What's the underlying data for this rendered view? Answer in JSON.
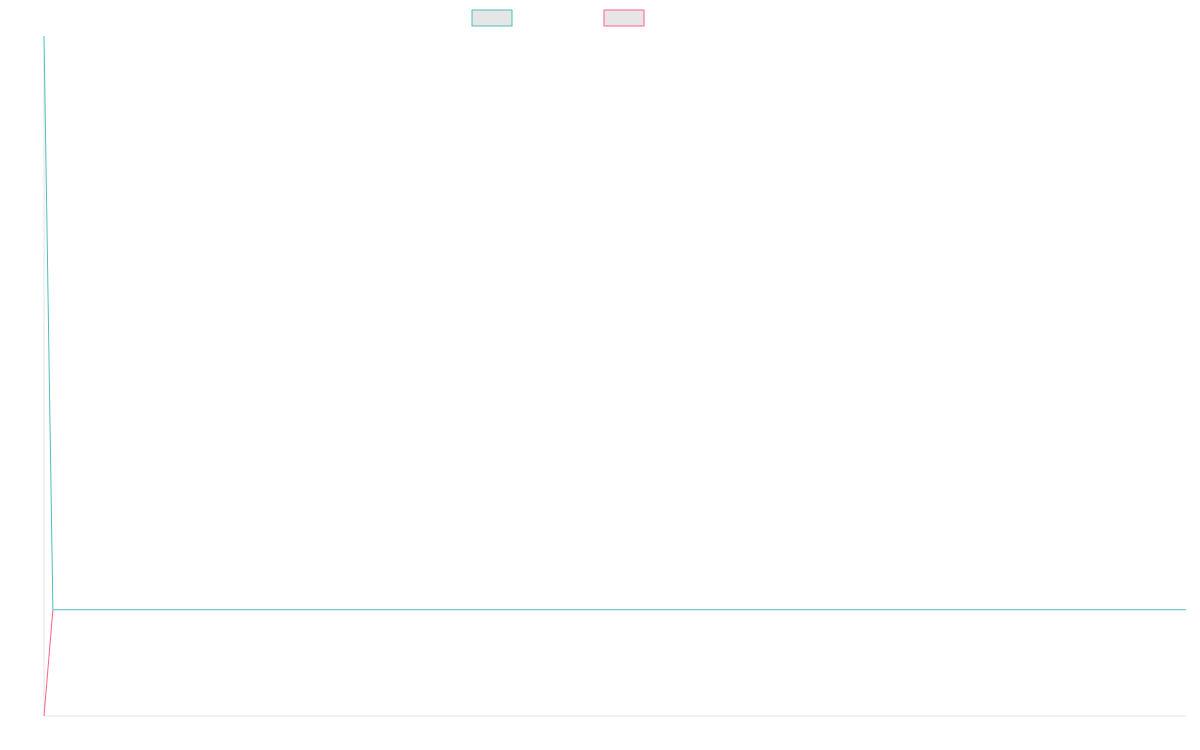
{
  "chart_data": {
    "type": "line",
    "title": "",
    "xlabel": "",
    "ylabel": "",
    "x": [
      0,
      1,
      2
    ],
    "xlim": [
      0,
      128
    ],
    "ylim": [
      -1,
      5.4
    ],
    "grid": false,
    "legend_position": "top-center",
    "series": [
      {
        "name": "",
        "color": "#4bc0c0",
        "swatch_fill": "#e6e6e6",
        "values": [
          5.4,
          0,
          0
        ]
      },
      {
        "name": "",
        "color": "#ff6384",
        "swatch_fill": "#e6e6e6",
        "values": [
          -1,
          0,
          null
        ]
      }
    ]
  }
}
